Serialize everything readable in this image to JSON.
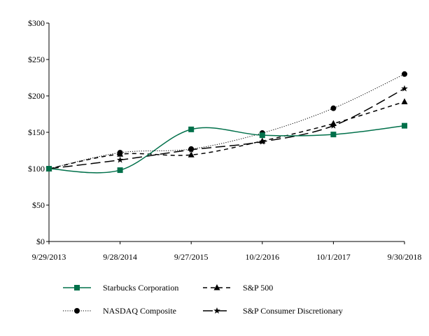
{
  "chart_data": {
    "type": "line",
    "title": "",
    "xlabel": "",
    "ylabel": "",
    "categories": [
      "9/29/2013",
      "9/28/2014",
      "9/27/2015",
      "10/2/2016",
      "10/1/2017",
      "9/30/2018"
    ],
    "ylim": [
      0,
      300
    ],
    "yticks": [
      0,
      50,
      100,
      150,
      200,
      250,
      300
    ],
    "ytick_labels": [
      "$0",
      "$50",
      "$100",
      "$150",
      "$200",
      "$250",
      "$300"
    ],
    "grid": false,
    "legend_placement": "bottom",
    "series": [
      {
        "name": "Starbucks Corporation",
        "values": [
          100,
          98,
          154,
          146,
          147,
          159
        ],
        "color": "#00704A",
        "dash": "solid",
        "marker": "square"
      },
      {
        "name": "S&P 500",
        "values": [
          100,
          120,
          119,
          138,
          162,
          192
        ],
        "color": "#000000",
        "dash": "dashed",
        "marker": "triangle"
      },
      {
        "name": "NASDAQ Composite",
        "values": [
          100,
          122,
          127,
          149,
          183,
          230
        ],
        "color": "#000000",
        "dash": "dotted",
        "marker": "circle"
      },
      {
        "name": "S&P Consumer Discretionary",
        "values": [
          100,
          112,
          126,
          137,
          159,
          210
        ],
        "color": "#000000",
        "dash": "long-dash",
        "marker": "star"
      }
    ]
  }
}
